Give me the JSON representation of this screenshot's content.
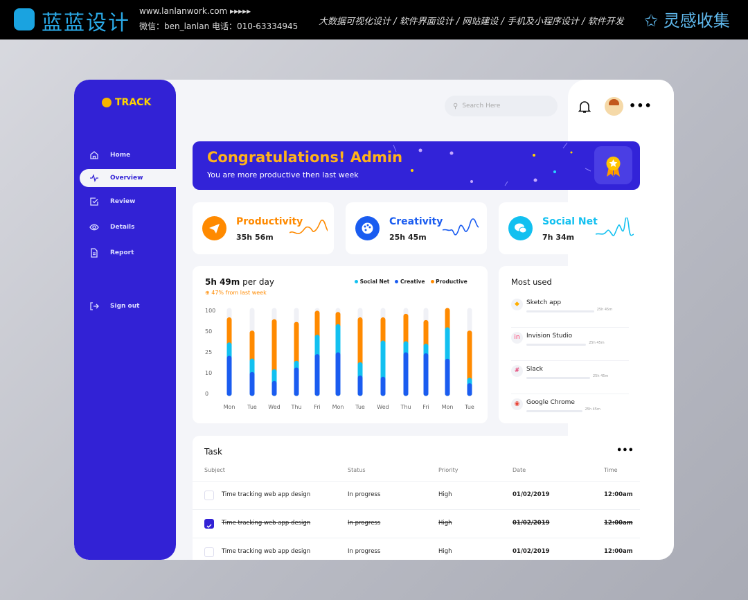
{
  "topbar": {
    "brand": "蓝蓝设计",
    "url": "www.lanlanwork.com  ▸▸▸▸▸",
    "contact": "微信：ben_lanlan    电话：010-63334945",
    "services": "大数据可视化设计 / 软件界面设计 / 网站建设 / 手机及小程序设计 / 软件开发",
    "brand2": "灵感收集"
  },
  "sidebar": {
    "logo": "TRACK",
    "items": [
      {
        "label": "Home",
        "icon": "home-icon"
      },
      {
        "label": "Overview",
        "icon": "activity-icon",
        "active": true
      },
      {
        "label": "Review",
        "icon": "checkbox-icon"
      },
      {
        "label": "Details",
        "icon": "eye-icon"
      },
      {
        "label": "Report",
        "icon": "document-icon"
      }
    ],
    "signout": "Sign out"
  },
  "header": {
    "search_placeholder": "Search Here"
  },
  "banner": {
    "title": "Congratulations! Admin",
    "subtitle": "You are more productive then last week"
  },
  "stats": [
    {
      "name": "Productivity",
      "value": "35h 56m",
      "color": "#ff8a00"
    },
    {
      "name": "Creativity",
      "value": "25h 45m",
      "color": "#1a5cf0"
    },
    {
      "name": "Social Net",
      "value": "7h 34m",
      "color": "#12c0f0"
    }
  ],
  "chart_data": {
    "type": "bar",
    "stacked": true,
    "title": "5h 49m",
    "title_suffix": "per day",
    "subtitle": "47% from last week",
    "legend_position": "top-right",
    "yticks": [
      0,
      10,
      25,
      50,
      100
    ],
    "ylim": [
      0,
      100
    ],
    "categories": [
      "Mon",
      "Tue",
      "Wed",
      "Thu",
      "Fri",
      "Mon",
      "Tue",
      "Wed",
      "Thu",
      "Fri",
      "Mon",
      "Tue"
    ],
    "series": [
      {
        "name": "Creative",
        "color": "#1a5cf0",
        "top": [
          20.5,
          9.2,
          4.9,
          12,
          21.7,
          23,
          7.5,
          6.9,
          23,
          22.3,
          18.4,
          3.8
        ]
      },
      {
        "name": "Social Net",
        "color": "#12c0f0",
        "top": [
          33.5,
          18.5,
          10.8,
          16.9,
          42.8,
          61,
          15.9,
          35.8,
          35,
          32,
          53.5,
          6.4
        ]
      },
      {
        "name": "Productive",
        "color": "#ff8a00",
        "top": [
          77.5,
          47.8,
          73,
          66.5,
          93.5,
          90.5,
          77.5,
          77.5,
          86,
          71,
          100,
          47.8
        ]
      }
    ]
  },
  "most_used": {
    "title": "Most used",
    "apps": [
      {
        "name": "Sketch app",
        "time": "25h 45m",
        "progress": 0.85,
        "icon": "sketch-icon"
      },
      {
        "name": "Invision Studio",
        "time": "25h 45m",
        "progress": 0.75,
        "icon": "invision-icon"
      },
      {
        "name": "Slack",
        "time": "25h 45m",
        "progress": 0.8,
        "icon": "slack-icon"
      },
      {
        "name": "Google Chrome",
        "time": "25h 45m",
        "progress": 0.7,
        "icon": "chrome-icon"
      }
    ]
  },
  "tasks": {
    "title": "Task",
    "headers": [
      "Subject",
      "Status",
      "Priority",
      "Date",
      "Time"
    ],
    "rows": [
      {
        "subject": "Time tracking web app design",
        "status": "In progress",
        "priority": "High",
        "date": "01/02/2019",
        "time": "12:00am",
        "done": false
      },
      {
        "subject": "Time tracking web app design",
        "status": "In progress",
        "priority": "High",
        "date": "01/02/2019",
        "time": "12:00am",
        "done": true
      },
      {
        "subject": "Time tracking web app design",
        "status": "In progress",
        "priority": "High",
        "date": "01/02/2019",
        "time": "12:00am",
        "done": false
      }
    ]
  }
}
